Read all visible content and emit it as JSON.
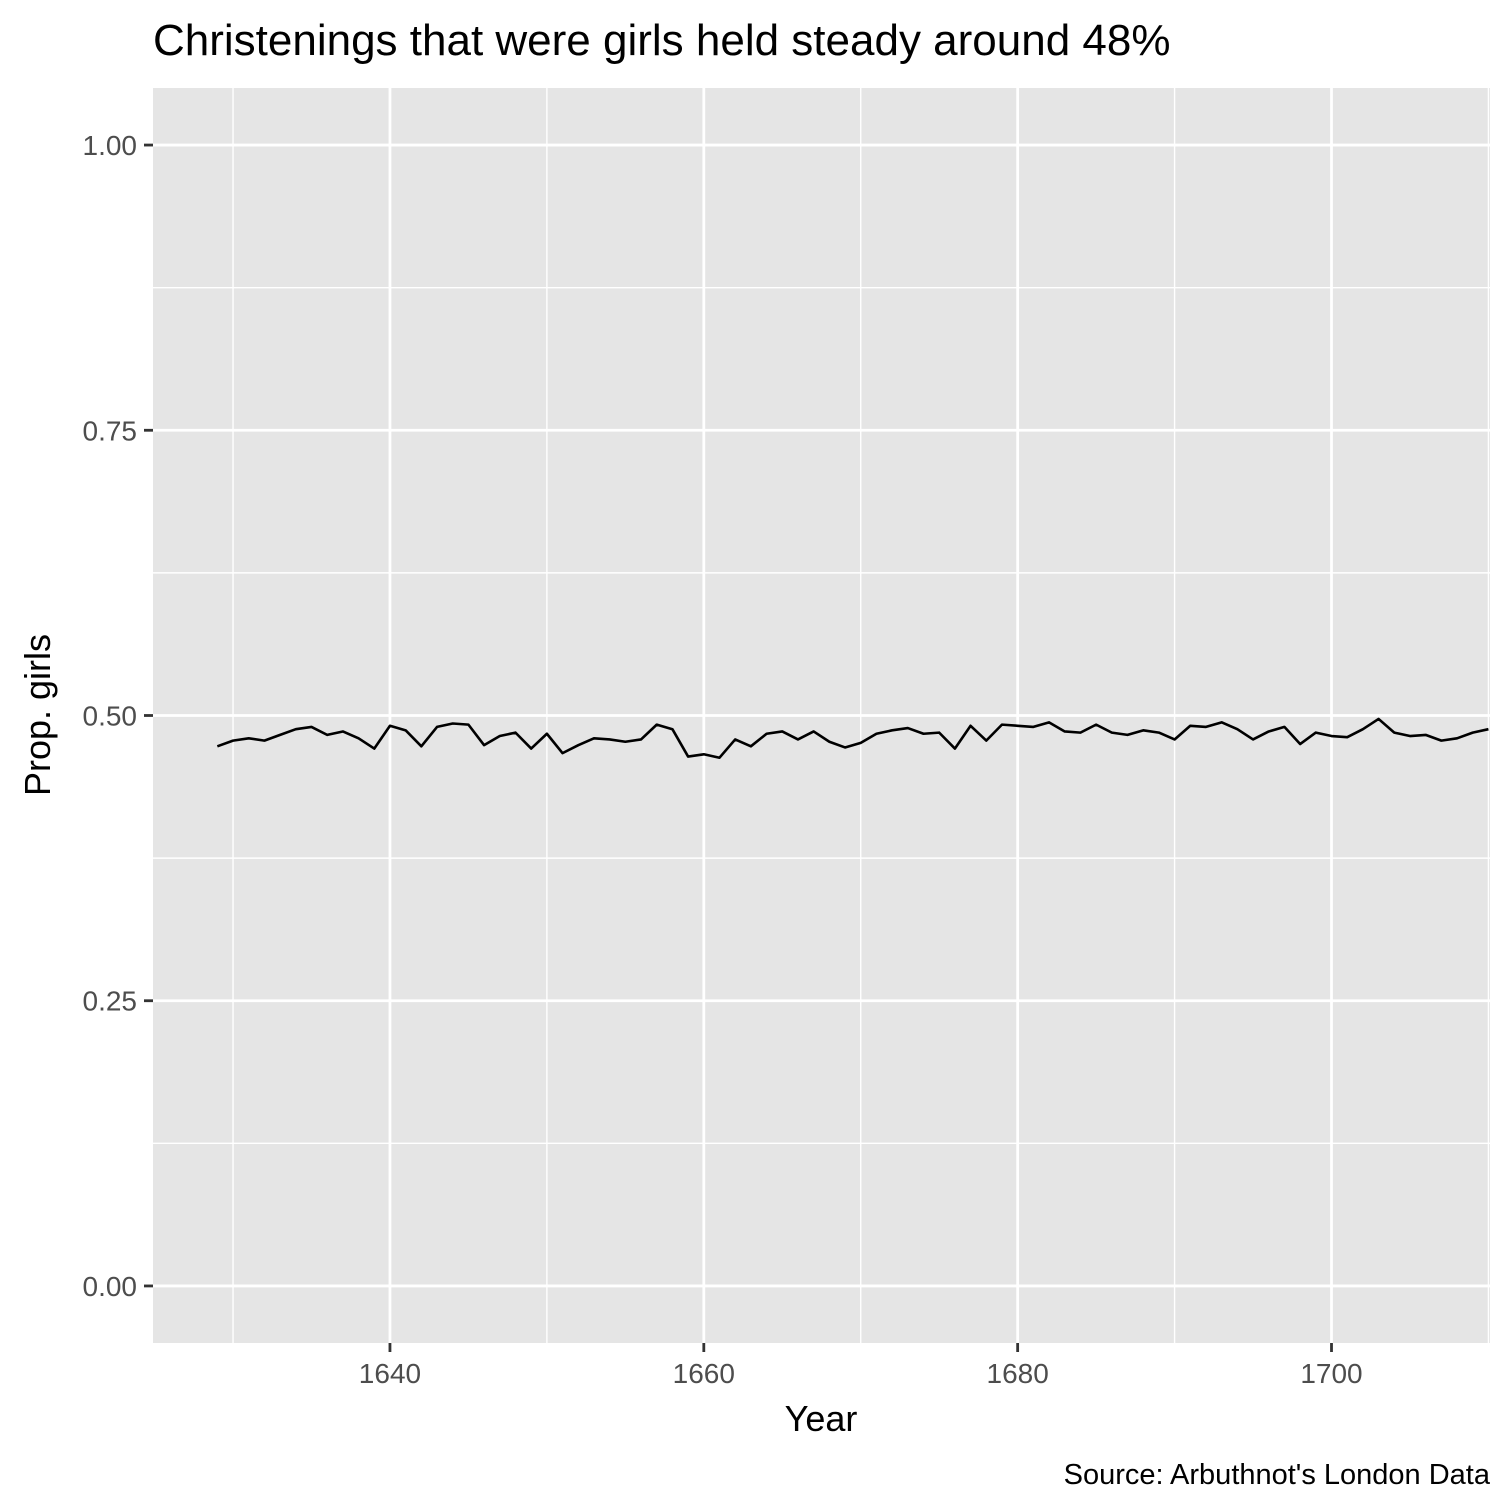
{
  "chart_data": {
    "type": "line",
    "title": "Christenings that were girls held steady around 48%",
    "xlabel": "Year",
    "ylabel": "Prop. girls",
    "caption": "Source: Arbuthnot's London Data",
    "xlim": [
      1624.9,
      1710.1
    ],
    "ylim": [
      -0.05,
      1.05
    ],
    "x_ticks": [
      1640,
      1660,
      1680,
      1700
    ],
    "y_ticks": [
      0.0,
      0.25,
      0.5,
      0.75,
      1.0
    ],
    "y_tick_labels": [
      "0.00",
      "0.25",
      "0.50",
      "0.75",
      "1.00"
    ],
    "grid": true,
    "panel_background": "#e5e5e5",
    "grid_color": "#ffffff",
    "line_color": "#000000",
    "series": [
      {
        "x": [
          1629,
          1630,
          1631,
          1632,
          1633,
          1634,
          1635,
          1636,
          1637,
          1638,
          1639,
          1640,
          1641,
          1642,
          1643,
          1644,
          1645,
          1646,
          1647,
          1648,
          1649,
          1650,
          1651,
          1652,
          1653,
          1654,
          1655,
          1656,
          1657,
          1658,
          1659,
          1660,
          1661,
          1662,
          1663,
          1664,
          1665,
          1666,
          1667,
          1668,
          1669,
          1670,
          1671,
          1672,
          1673,
          1674,
          1675,
          1676,
          1677,
          1678,
          1679,
          1680,
          1681,
          1682,
          1683,
          1684,
          1685,
          1686,
          1687,
          1688,
          1689,
          1690,
          1691,
          1692,
          1693,
          1694,
          1695,
          1696,
          1697,
          1698,
          1699,
          1700,
          1701,
          1702,
          1703,
          1704,
          1705,
          1706,
          1707,
          1708,
          1709,
          1710
        ],
        "y": [
          0.473,
          0.478,
          0.48,
          0.478,
          0.483,
          0.488,
          0.49,
          0.483,
          0.486,
          0.48,
          0.471,
          0.491,
          0.487,
          0.473,
          0.49,
          0.493,
          0.492,
          0.474,
          0.482,
          0.485,
          0.471,
          0.484,
          0.467,
          0.474,
          0.48,
          0.479,
          0.477,
          0.479,
          0.492,
          0.488,
          0.464,
          0.466,
          0.463,
          0.479,
          0.473,
          0.484,
          0.486,
          0.479,
          0.486,
          0.477,
          0.472,
          0.476,
          0.484,
          0.487,
          0.489,
          0.484,
          0.485,
          0.471,
          0.491,
          0.478,
          0.492,
          0.491,
          0.49,
          0.494,
          0.486,
          0.485,
          0.492,
          0.485,
          0.483,
          0.487,
          0.485,
          0.479,
          0.491,
          0.49,
          0.494,
          0.488,
          0.479,
          0.486,
          0.49,
          0.475,
          0.485,
          0.482,
          0.481,
          0.488,
          0.497,
          0.485,
          0.482,
          0.483,
          0.478,
          0.48,
          0.485,
          0.488
        ]
      }
    ]
  }
}
